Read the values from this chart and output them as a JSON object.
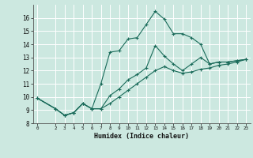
{
  "xlabel": "Humidex (Indice chaleur)",
  "background_color": "#cce8e0",
  "grid_color": "#ffffff",
  "line_color": "#1a6b5a",
  "xlim": [
    -0.5,
    23.5
  ],
  "ylim": [
    8,
    17
  ],
  "xticks": [
    0,
    2,
    3,
    4,
    5,
    6,
    7,
    8,
    9,
    10,
    11,
    12,
    13,
    14,
    15,
    16,
    17,
    18,
    19,
    20,
    21,
    22,
    23
  ],
  "yticks": [
    8,
    9,
    10,
    11,
    12,
    13,
    14,
    15,
    16
  ],
  "series": [
    {
      "x": [
        0,
        2,
        3,
        4,
        5,
        6,
        7,
        8,
        9,
        10,
        11,
        12,
        13,
        14,
        15,
        16,
        17,
        18,
        19,
        20,
        21,
        22,
        23
      ],
      "y": [
        9.9,
        9.1,
        8.6,
        8.8,
        9.5,
        9.1,
        11.0,
        13.4,
        13.5,
        14.4,
        14.5,
        15.5,
        16.5,
        15.9,
        14.8,
        14.8,
        14.5,
        14.0,
        12.5,
        12.65,
        12.65,
        12.75,
        12.85
      ]
    },
    {
      "x": [
        0,
        2,
        3,
        4,
        5,
        6,
        7,
        8,
        9,
        10,
        11,
        12,
        13,
        14,
        15,
        16,
        17,
        18,
        19,
        20,
        21,
        22,
        23
      ],
      "y": [
        9.9,
        9.1,
        8.6,
        8.8,
        9.5,
        9.1,
        9.1,
        10.1,
        10.6,
        11.3,
        11.7,
        12.2,
        13.9,
        13.1,
        12.5,
        12.0,
        12.5,
        13.0,
        12.5,
        12.65,
        12.65,
        12.75,
        12.85
      ]
    },
    {
      "x": [
        0,
        2,
        3,
        4,
        5,
        6,
        7,
        8,
        9,
        10,
        11,
        12,
        13,
        14,
        15,
        16,
        17,
        18,
        19,
        20,
        21,
        22,
        23
      ],
      "y": [
        9.9,
        9.1,
        8.6,
        8.8,
        9.5,
        9.1,
        9.1,
        9.5,
        10.0,
        10.5,
        11.0,
        11.5,
        12.0,
        12.3,
        12.0,
        11.8,
        11.9,
        12.1,
        12.2,
        12.4,
        12.5,
        12.65,
        12.85
      ]
    }
  ]
}
